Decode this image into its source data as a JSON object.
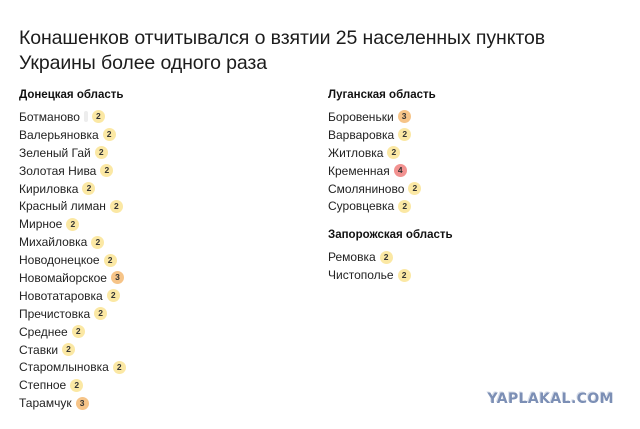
{
  "title_line1": "Конашенков отчитывался о взятии 25 населенных пунктов",
  "title_line2": "Украины более одного раза",
  "badge_colors": {
    "2": "#fbe8a4",
    "3": "#f6c488",
    "4": "#f29290"
  },
  "left_column": {
    "region": "Донецкая область",
    "items": [
      {
        "name": "Ботманово",
        "count": "2",
        "extra_gap": true
      },
      {
        "name": "Валерьяновка",
        "count": "2"
      },
      {
        "name": "Зеленый Гай",
        "count": "2"
      },
      {
        "name": "Золотая Нива",
        "count": "2"
      },
      {
        "name": "Кириловка",
        "count": "2"
      },
      {
        "name": "Красный лиман",
        "count": "2"
      },
      {
        "name": "Мирное",
        "count": "2"
      },
      {
        "name": "Михайловка",
        "count": "2"
      },
      {
        "name": "Новодонецкое",
        "count": "2"
      },
      {
        "name": "Новомайорское",
        "count": "3"
      },
      {
        "name": "Новотатаровка",
        "count": "2"
      },
      {
        "name": "Пречистовка",
        "count": "2"
      },
      {
        "name": "Среднее",
        "count": "2"
      },
      {
        "name": "Ставки",
        "count": "2"
      },
      {
        "name": "Старомлыновка",
        "count": "2"
      },
      {
        "name": "Степное",
        "count": "2"
      },
      {
        "name": "Тарамчук",
        "count": "3"
      }
    ]
  },
  "right_column": {
    "regions": [
      {
        "region": "Луганская область",
        "items": [
          {
            "name": "Боровеньки",
            "count": "3"
          },
          {
            "name": "Варваровка",
            "count": "2"
          },
          {
            "name": "Житловка",
            "count": "2"
          },
          {
            "name": "Кременная",
            "count": "4"
          },
          {
            "name": "Смоляниново",
            "count": "2"
          },
          {
            "name": "Суровцевка",
            "count": "2"
          }
        ]
      },
      {
        "region": "Запорожская область",
        "items": [
          {
            "name": "Ремовка",
            "count": "2"
          },
          {
            "name": "Чистополье",
            "count": "2"
          }
        ]
      }
    ]
  },
  "watermark": "YAPLAKAL.COM"
}
